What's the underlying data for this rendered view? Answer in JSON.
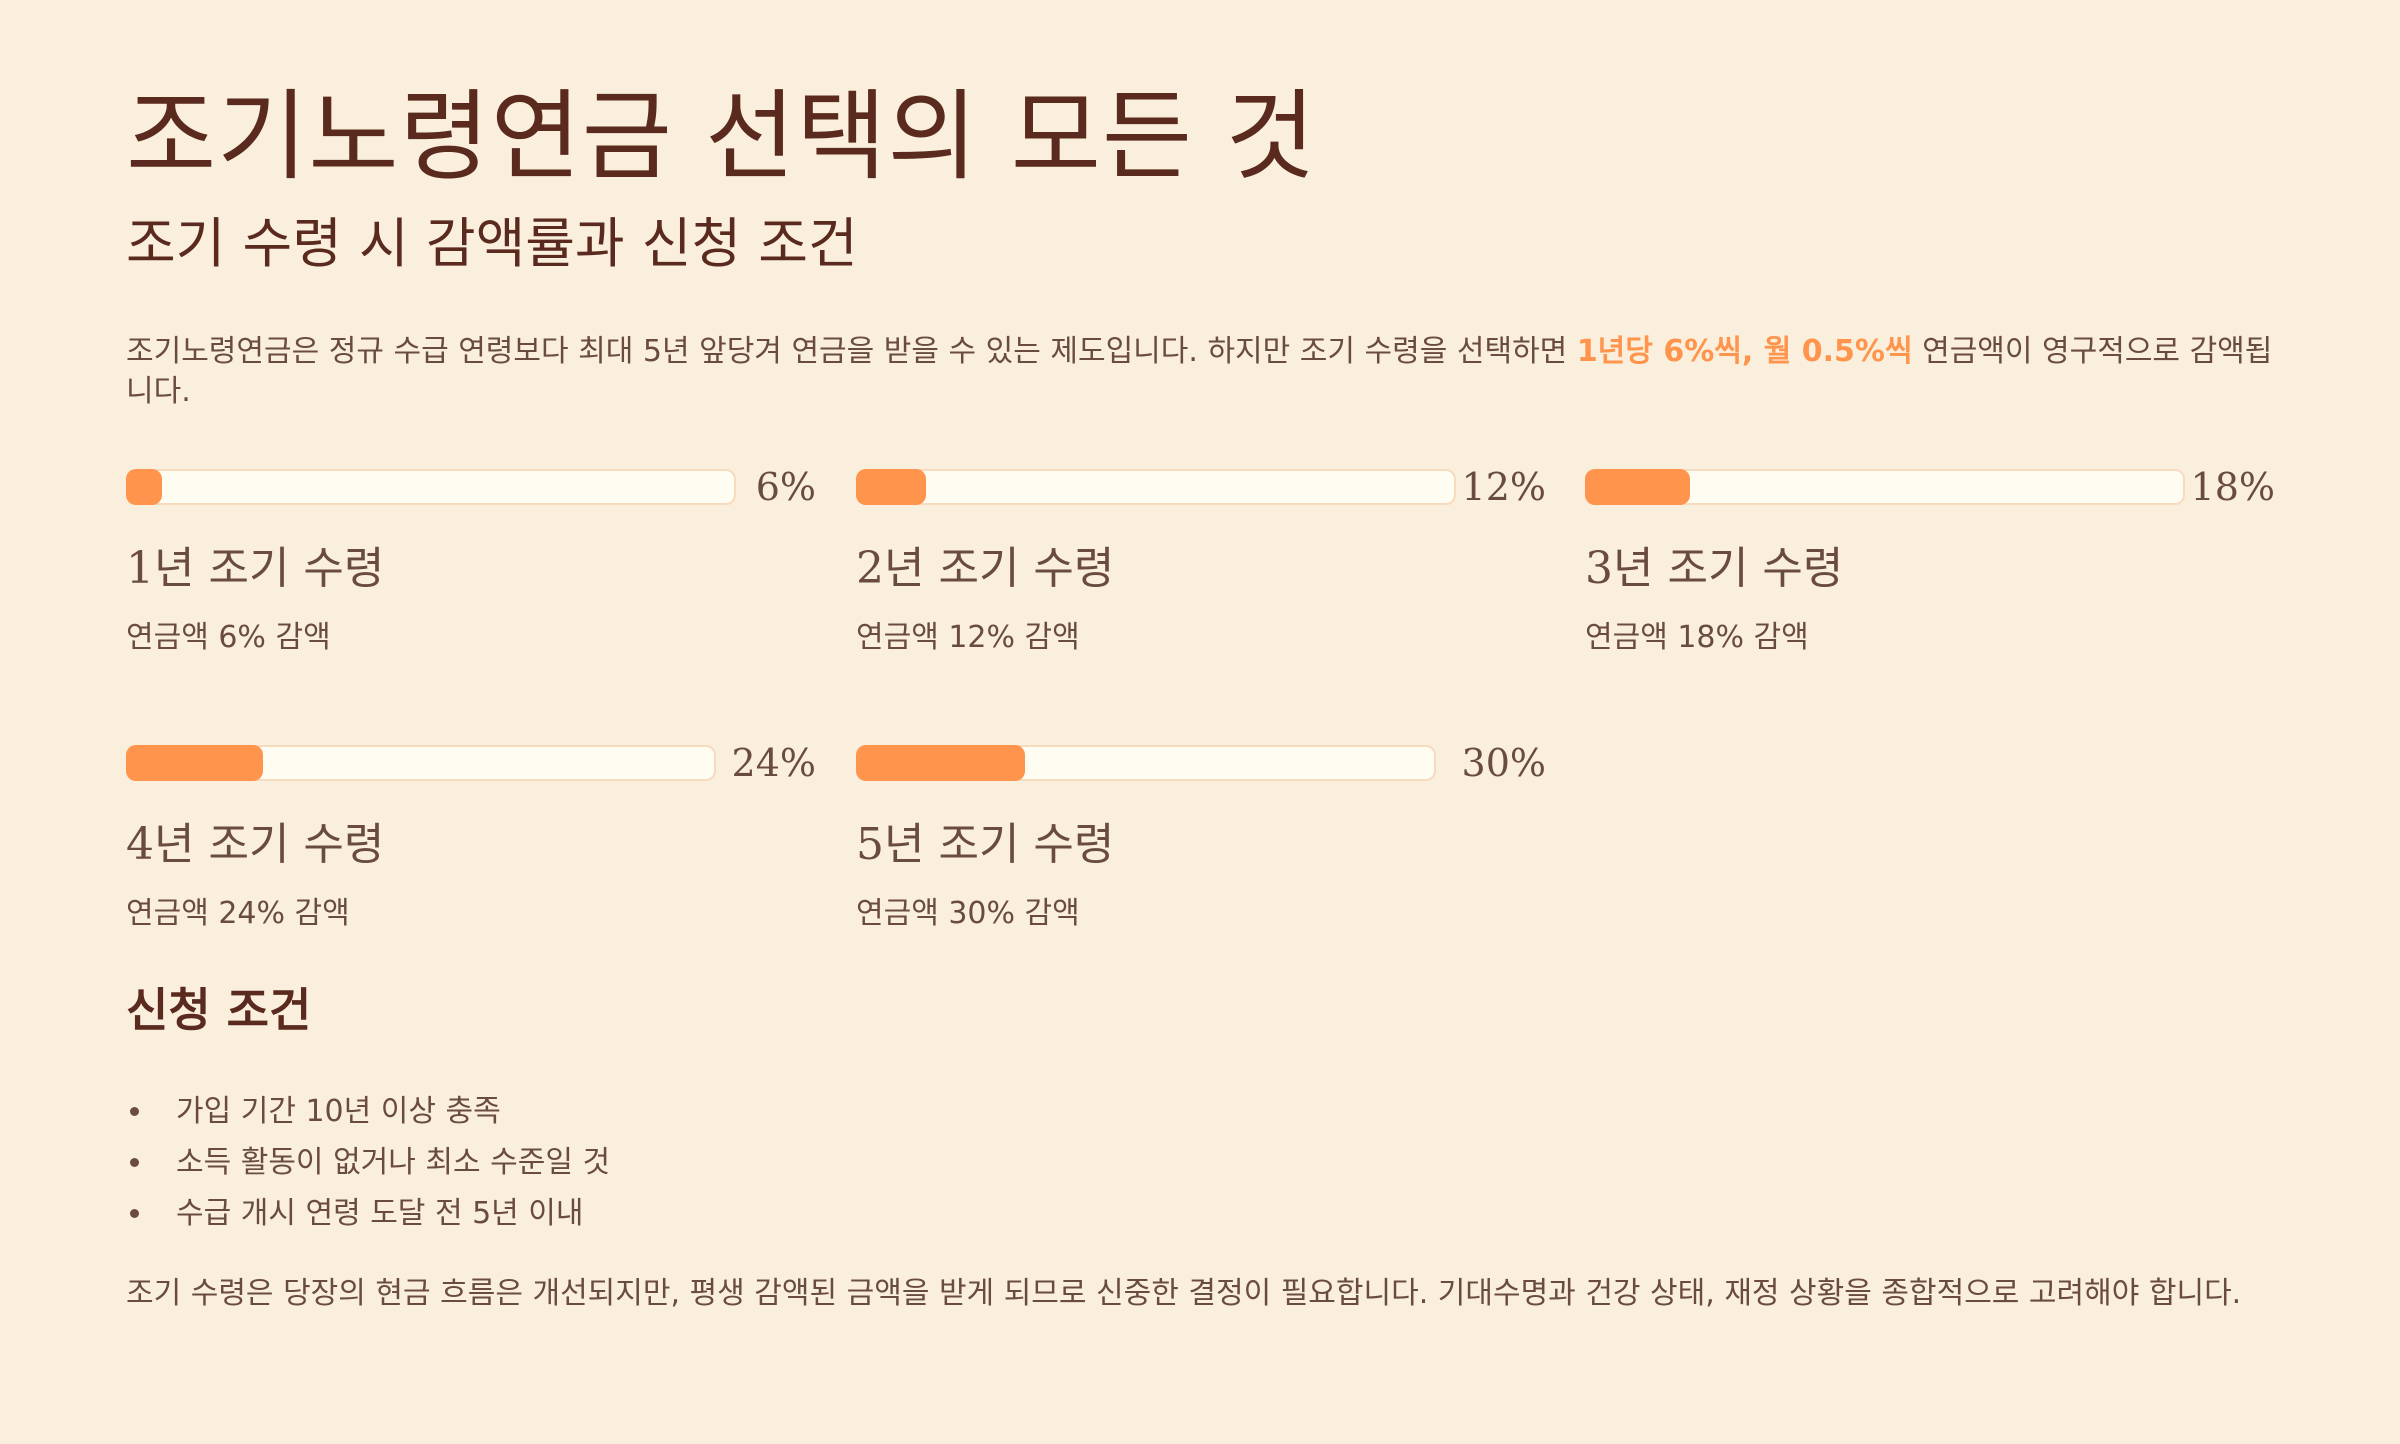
{
  "title": "조기노령연금 선택의 모든 것",
  "subtitle": "조기 수령 시 감액률과 신청 조건",
  "intro": {
    "before": "조기노령연금은 정규 수급 연령보다 최대 5년 앞당겨 연금을 받을 수 있는 제도입니다. 하지만 조기 수령을 선택하면 ",
    "highlight": "1년당 6%씩, 월 0.5%씩",
    "after": " 연금액이 영구적으로 감액됩니다."
  },
  "colors": {
    "accent": "#ff944d",
    "background": "#f9efdc",
    "heading": "#5b2a1e",
    "text": "#6a4b40",
    "track": "#fffcf1"
  },
  "stats": [
    {
      "percent_label": "6%",
      "reduction": 0.06,
      "title": "1년 조기 수령",
      "desc": "연금액 6% 감액"
    },
    {
      "percent_label": "12%",
      "reduction": 0.12,
      "title": "2년 조기 수령",
      "desc": "연금액 12% 감액"
    },
    {
      "percent_label": "18%",
      "reduction": 0.18,
      "title": "3년 조기 수령",
      "desc": "연금액 18% 감액"
    },
    {
      "percent_label": "24%",
      "reduction": 0.24,
      "title": "4년 조기 수령",
      "desc": "연금액 24% 감액"
    },
    {
      "percent_label": "30%",
      "reduction": 0.3,
      "title": "5년 조기 수령",
      "desc": "연금액 30% 감액"
    }
  ],
  "conditions": {
    "title": "신청 조건",
    "items": [
      "가입 기간 10년 이상 충족",
      "소득 활동이 없거나 최소 수준일 것",
      "수급 개시 연령 도달 전 5년 이내"
    ]
  },
  "outro": "조기 수령은 당장의 현금 흐름은 개선되지만, 평생 감액된 금액을 받게 되므로 신중한 결정이 필요합니다. 기대수명과 건강 상태, 재정 상황을 종합적으로 고려해야 합니다."
}
